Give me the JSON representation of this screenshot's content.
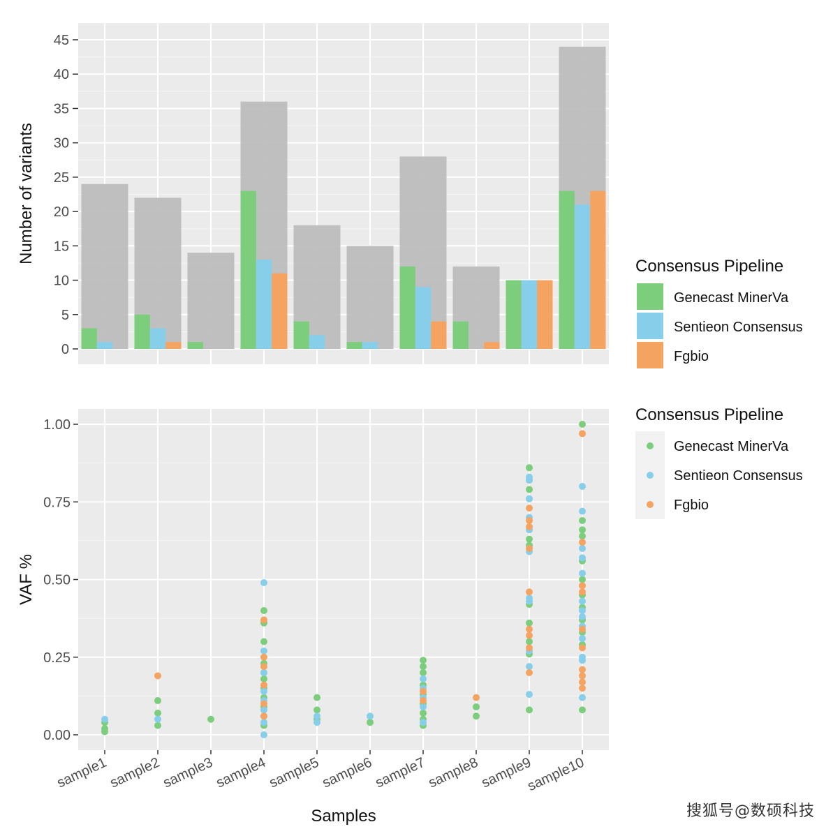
{
  "chart_data": [
    {
      "type": "bar",
      "ylabel": "Number of variants",
      "ylim": [
        0,
        45
      ],
      "yticks": [
        0,
        5,
        10,
        15,
        20,
        25,
        30,
        35,
        40,
        45
      ],
      "categories": [
        "sample1",
        "sample2",
        "sample3",
        "sample4",
        "sample5",
        "sample6",
        "sample7",
        "sample8",
        "sample9",
        "sample10"
      ],
      "total_background": [
        24,
        22,
        14,
        36,
        18,
        15,
        28,
        12,
        10,
        44
      ],
      "series": [
        {
          "name": "Genecast MinerVa",
          "color": "#7ccd7c",
          "values": [
            3,
            5,
            1,
            23,
            4,
            1,
            12,
            4,
            10,
            23
          ]
        },
        {
          "name": "Sentieon Consensus",
          "color": "#87ceeb",
          "values": [
            1,
            3,
            0,
            13,
            2,
            1,
            9,
            0,
            10,
            21
          ]
        },
        {
          "name": "Fgbio",
          "color": "#f4a460",
          "values": [
            0,
            1,
            0,
            11,
            0,
            0,
            4,
            1,
            10,
            23
          ]
        }
      ],
      "background_color": "#bdbdbd",
      "grid": true,
      "legend": {
        "title": "Consensus Pipeline",
        "placement": "right"
      }
    },
    {
      "type": "scatter",
      "xlabel": "Samples",
      "ylabel": "VAF %",
      "ylim": [
        0,
        1
      ],
      "yticks": [
        "0.00",
        "0.25",
        "0.50",
        "0.75",
        "1.00"
      ],
      "categories": [
        "sample1",
        "sample2",
        "sample3",
        "sample4",
        "sample5",
        "sample6",
        "sample7",
        "sample8",
        "sample9",
        "sample10"
      ],
      "grid": true,
      "legend": {
        "title": "Consensus Pipeline",
        "placement": "right"
      },
      "series": [
        {
          "name": "Genecast MinerVa",
          "color": "#7ccd7c",
          "points": [
            [
              "sample1",
              0.01
            ],
            [
              "sample1",
              0.02
            ],
            [
              "sample1",
              0.04
            ],
            [
              "sample2",
              0.03
            ],
            [
              "sample2",
              0.07
            ],
            [
              "sample2",
              0.11
            ],
            [
              "sample3",
              0.05
            ],
            [
              "sample4",
              0.03
            ],
            [
              "sample4",
              0.06
            ],
            [
              "sample4",
              0.09
            ],
            [
              "sample4",
              0.12
            ],
            [
              "sample4",
              0.15
            ],
            [
              "sample4",
              0.18
            ],
            [
              "sample4",
              0.2
            ],
            [
              "sample4",
              0.23
            ],
            [
              "sample4",
              0.3
            ],
            [
              "sample4",
              0.36
            ],
            [
              "sample4",
              0.4
            ],
            [
              "sample5",
              0.05
            ],
            [
              "sample5",
              0.08
            ],
            [
              "sample5",
              0.12
            ],
            [
              "sample6",
              0.04
            ],
            [
              "sample7",
              0.03
            ],
            [
              "sample7",
              0.05
            ],
            [
              "sample7",
              0.07
            ],
            [
              "sample7",
              0.1
            ],
            [
              "sample7",
              0.13
            ],
            [
              "sample7",
              0.16
            ],
            [
              "sample7",
              0.2
            ],
            [
              "sample7",
              0.22
            ],
            [
              "sample7",
              0.24
            ],
            [
              "sample8",
              0.06
            ],
            [
              "sample8",
              0.09
            ],
            [
              "sample9",
              0.08
            ],
            [
              "sample9",
              0.26
            ],
            [
              "sample9",
              0.3
            ],
            [
              "sample9",
              0.36
            ],
            [
              "sample9",
              0.42
            ],
            [
              "sample9",
              0.61
            ],
            [
              "sample9",
              0.63
            ],
            [
              "sample9",
              0.76
            ],
            [
              "sample9",
              0.79
            ],
            [
              "sample9",
              0.82
            ],
            [
              "sample9",
              0.86
            ],
            [
              "sample10",
              0.08
            ],
            [
              "sample10",
              0.29
            ],
            [
              "sample10",
              0.33
            ],
            [
              "sample10",
              0.37
            ],
            [
              "sample10",
              0.41
            ],
            [
              "sample10",
              0.45
            ],
            [
              "sample10",
              0.5
            ],
            [
              "sample10",
              0.56
            ],
            [
              "sample10",
              0.64
            ],
            [
              "sample10",
              0.66
            ],
            [
              "sample10",
              0.69
            ],
            [
              "sample10",
              1.0
            ]
          ]
        },
        {
          "name": "Sentieon Consensus",
          "color": "#87ceeb",
          "points": [
            [
              "sample1",
              0.05
            ],
            [
              "sample2",
              0.05
            ],
            [
              "sample4",
              0.0
            ],
            [
              "sample4",
              0.04
            ],
            [
              "sample4",
              0.08
            ],
            [
              "sample4",
              0.11
            ],
            [
              "sample4",
              0.14
            ],
            [
              "sample4",
              0.2
            ],
            [
              "sample4",
              0.27
            ],
            [
              "sample4",
              0.49
            ],
            [
              "sample5",
              0.04
            ],
            [
              "sample5",
              0.06
            ],
            [
              "sample6",
              0.06
            ],
            [
              "sample7",
              0.04
            ],
            [
              "sample7",
              0.09
            ],
            [
              "sample7",
              0.12
            ],
            [
              "sample7",
              0.15
            ],
            [
              "sample7",
              0.18
            ],
            [
              "sample9",
              0.13
            ],
            [
              "sample9",
              0.22
            ],
            [
              "sample9",
              0.27
            ],
            [
              "sample9",
              0.43
            ],
            [
              "sample9",
              0.44
            ],
            [
              "sample9",
              0.59
            ],
            [
              "sample9",
              0.66
            ],
            [
              "sample9",
              0.7
            ],
            [
              "sample9",
              0.76
            ],
            [
              "sample9",
              0.82
            ],
            [
              "sample9",
              0.83
            ],
            [
              "sample10",
              0.12
            ],
            [
              "sample10",
              0.24
            ],
            [
              "sample10",
              0.25
            ],
            [
              "sample10",
              0.31
            ],
            [
              "sample10",
              0.35
            ],
            [
              "sample10",
              0.38
            ],
            [
              "sample10",
              0.4
            ],
            [
              "sample10",
              0.43
            ],
            [
              "sample10",
              0.52
            ],
            [
              "sample10",
              0.57
            ],
            [
              "sample10",
              0.6
            ],
            [
              "sample10",
              0.72
            ],
            [
              "sample10",
              0.8
            ]
          ]
        },
        {
          "name": "Fgbio",
          "color": "#f4a460",
          "points": [
            [
              "sample2",
              0.19
            ],
            [
              "sample4",
              0.06
            ],
            [
              "sample4",
              0.1
            ],
            [
              "sample4",
              0.16
            ],
            [
              "sample4",
              0.22
            ],
            [
              "sample4",
              0.25
            ],
            [
              "sample4",
              0.37
            ],
            [
              "sample7",
              0.11
            ],
            [
              "sample7",
              0.14
            ],
            [
              "sample8",
              0.12
            ],
            [
              "sample9",
              0.2
            ],
            [
              "sample9",
              0.28
            ],
            [
              "sample9",
              0.32
            ],
            [
              "sample9",
              0.34
            ],
            [
              "sample9",
              0.46
            ],
            [
              "sample9",
              0.6
            ],
            [
              "sample9",
              0.67
            ],
            [
              "sample9",
              0.69
            ],
            [
              "sample9",
              0.73
            ],
            [
              "sample10",
              0.15
            ],
            [
              "sample10",
              0.17
            ],
            [
              "sample10",
              0.19
            ],
            [
              "sample10",
              0.21
            ],
            [
              "sample10",
              0.28
            ],
            [
              "sample10",
              0.34
            ],
            [
              "sample10",
              0.46
            ],
            [
              "sample10",
              0.48
            ],
            [
              "sample10",
              0.62
            ],
            [
              "sample10",
              0.97
            ]
          ]
        }
      ]
    }
  ],
  "watermark": "搜狐号@数硕科技"
}
